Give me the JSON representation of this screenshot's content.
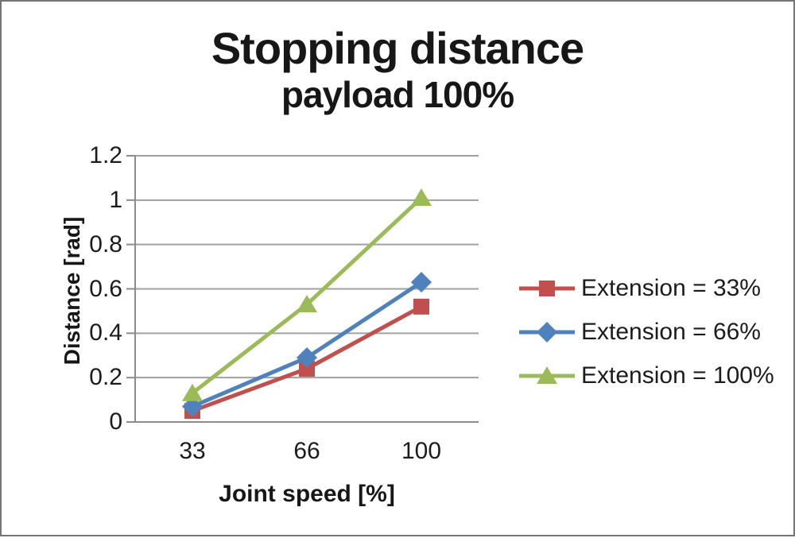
{
  "window": {
    "background": "#ffffff",
    "border_color": "#757575"
  },
  "chart_data": {
    "type": "line",
    "title": "Stopping distance",
    "subtitle": "payload 100%",
    "xlabel": "Joint speed [%]",
    "ylabel": "Distance [rad]",
    "categories": [
      "33",
      "66",
      "100"
    ],
    "yticks": [
      "1.2",
      "1",
      "0.8",
      "0.6",
      "0.4",
      "0.2",
      "0"
    ],
    "ylim": [
      0,
      1.2
    ],
    "grid": true,
    "legend_position": "right",
    "series": [
      {
        "name": "Extension = 33%",
        "color": "#C0504D",
        "marker": "square",
        "values": [
          0.05,
          0.24,
          0.52
        ]
      },
      {
        "name": "Extension = 66%",
        "color": "#4F81BD",
        "marker": "diamond",
        "values": [
          0.07,
          0.29,
          0.63
        ]
      },
      {
        "name": "Extension = 100%",
        "color": "#9BBB59",
        "marker": "triangle",
        "values": [
          0.13,
          0.53,
          1.01
        ]
      }
    ],
    "grid_color": "#a1a1a1",
    "axis_color": "#8c8c8c",
    "text_color": "#1c1c1c"
  }
}
